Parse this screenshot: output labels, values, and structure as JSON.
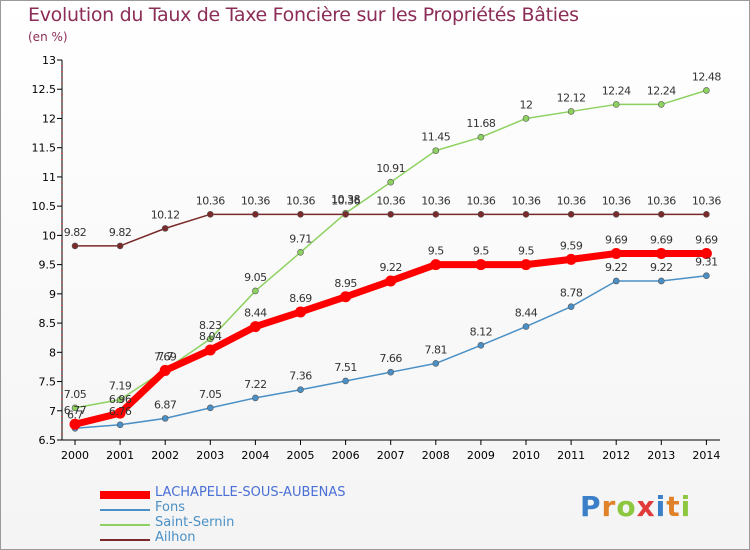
{
  "header": {
    "title": "Evolution du Taux de Taxe Foncière sur les Propriétés Bâties",
    "unit_label": "(en %)"
  },
  "logo": {
    "text": "Proxiti"
  },
  "chart_data": {
    "type": "line",
    "title": "Evolution du Taux de Taxe Foncière sur les Propriétés Bâties",
    "ylabel": "(en %)",
    "xlabel": "",
    "x": [
      "2000",
      "2001",
      "2002",
      "2003",
      "2004",
      "2005",
      "2006",
      "2007",
      "2008",
      "2009",
      "2010",
      "2011",
      "2012",
      "2013",
      "2014"
    ],
    "ylim": [
      6.5,
      13
    ],
    "yticks": [
      "6.5",
      "7",
      "7.5",
      "8",
      "8.5",
      "9",
      "9.5",
      "10",
      "10.5",
      "11",
      "11.5",
      "12",
      "12.5",
      "13"
    ],
    "grid": false,
    "legend_position": "bottom-left",
    "series": [
      {
        "name": "LACHAPELLE-SOUS-AUBENAS",
        "color": "#ff0000",
        "emphasis": true,
        "values": [
          6.77,
          6.96,
          7.69,
          8.04,
          8.44,
          8.69,
          8.95,
          9.22,
          9.5,
          9.5,
          9.5,
          9.59,
          9.69,
          9.69,
          9.69
        ],
        "labels": [
          "6.77",
          "6.96",
          "7.69",
          "8.04",
          "8.44",
          "8.69",
          "8.95",
          "9.22",
          "9.5",
          "9.5",
          "9.5",
          "9.59",
          "9.69",
          "9.69",
          "9.69"
        ]
      },
      {
        "name": "Fons",
        "color": "#4a90c6",
        "emphasis": false,
        "values": [
          6.7,
          6.76,
          6.87,
          7.05,
          7.22,
          7.36,
          7.51,
          7.66,
          7.81,
          8.12,
          8.44,
          8.78,
          9.22,
          9.22,
          9.31
        ],
        "labels": [
          "6.7",
          "6.76",
          "6.87",
          "7.05",
          "7.22",
          "7.36",
          "7.51",
          "7.66",
          "7.81",
          "8.12",
          "8.44",
          "8.78",
          "9.22",
          "9.22",
          "9.31"
        ]
      },
      {
        "name": "Saint-Sernin",
        "color": "#8dd160",
        "emphasis": false,
        "values": [
          7.05,
          7.19,
          7.7,
          8.23,
          9.05,
          9.71,
          10.38,
          10.91,
          11.45,
          11.68,
          12,
          12.12,
          12.24,
          12.24,
          12.48
        ],
        "labels": [
          "7.05",
          "7.19",
          "7.7",
          "8.23",
          "9.05",
          "9.71",
          "10.38",
          "10.91",
          "11.45",
          "11.68",
          "12",
          "12.12",
          "12.24",
          "12.24",
          "12.48"
        ]
      },
      {
        "name": "Ailhon",
        "color": "#7a2a2a",
        "emphasis": false,
        "values": [
          9.82,
          9.82,
          10.12,
          10.36,
          10.36,
          10.36,
          10.36,
          10.36,
          10.36,
          10.36,
          10.36,
          10.36,
          10.36,
          10.36,
          10.36
        ],
        "labels": [
          "9.82",
          "9.82",
          "10.12",
          "10.36",
          "10.36",
          "10.36",
          "10.36",
          "10.36",
          "10.36",
          "10.36",
          "10.36",
          "10.36",
          "10.36",
          "10.36",
          "10.36"
        ]
      }
    ]
  }
}
